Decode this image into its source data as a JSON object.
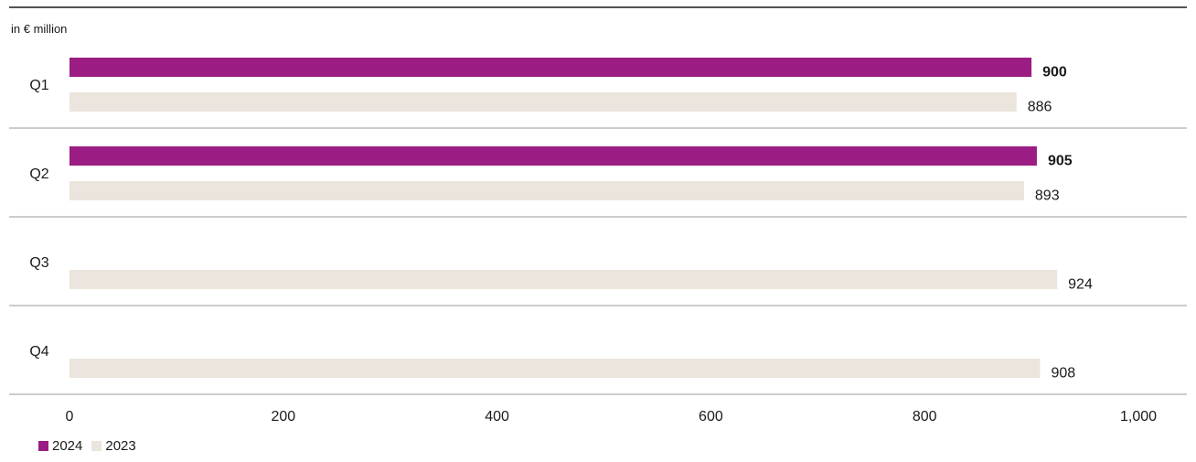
{
  "unit_label": "in € million",
  "colors": {
    "y2024": "#9b1d83",
    "y2023": "#ebe5dd",
    "rule": "#9a9a9a",
    "topline": "#1a1a1a"
  },
  "legend": [
    {
      "label": "2024",
      "color": "#9b1d83"
    },
    {
      "label": "2023",
      "color": "#ebe5dd"
    }
  ],
  "chart_data": {
    "type": "bar",
    "orientation": "horizontal",
    "categories": [
      "Q1",
      "Q2",
      "Q3",
      "Q4"
    ],
    "series": [
      {
        "name": "2024",
        "values": [
          900,
          905,
          null,
          null
        ]
      },
      {
        "name": "2023",
        "values": [
          886,
          893,
          924,
          908
        ]
      }
    ],
    "data_labels": {
      "2024": [
        "900",
        "905",
        null,
        null
      ],
      "2023": [
        "886",
        "893",
        "924",
        "908"
      ]
    },
    "x_ticks": [
      0,
      200,
      400,
      600,
      800,
      1000
    ],
    "x_tick_labels": [
      "0",
      "200",
      "400",
      "600",
      "800",
      "1,000"
    ],
    "xlim": [
      0,
      1000
    ],
    "xlabel": "",
    "ylabel": "in € million",
    "grid": false,
    "legend_position": "bottom-left"
  }
}
